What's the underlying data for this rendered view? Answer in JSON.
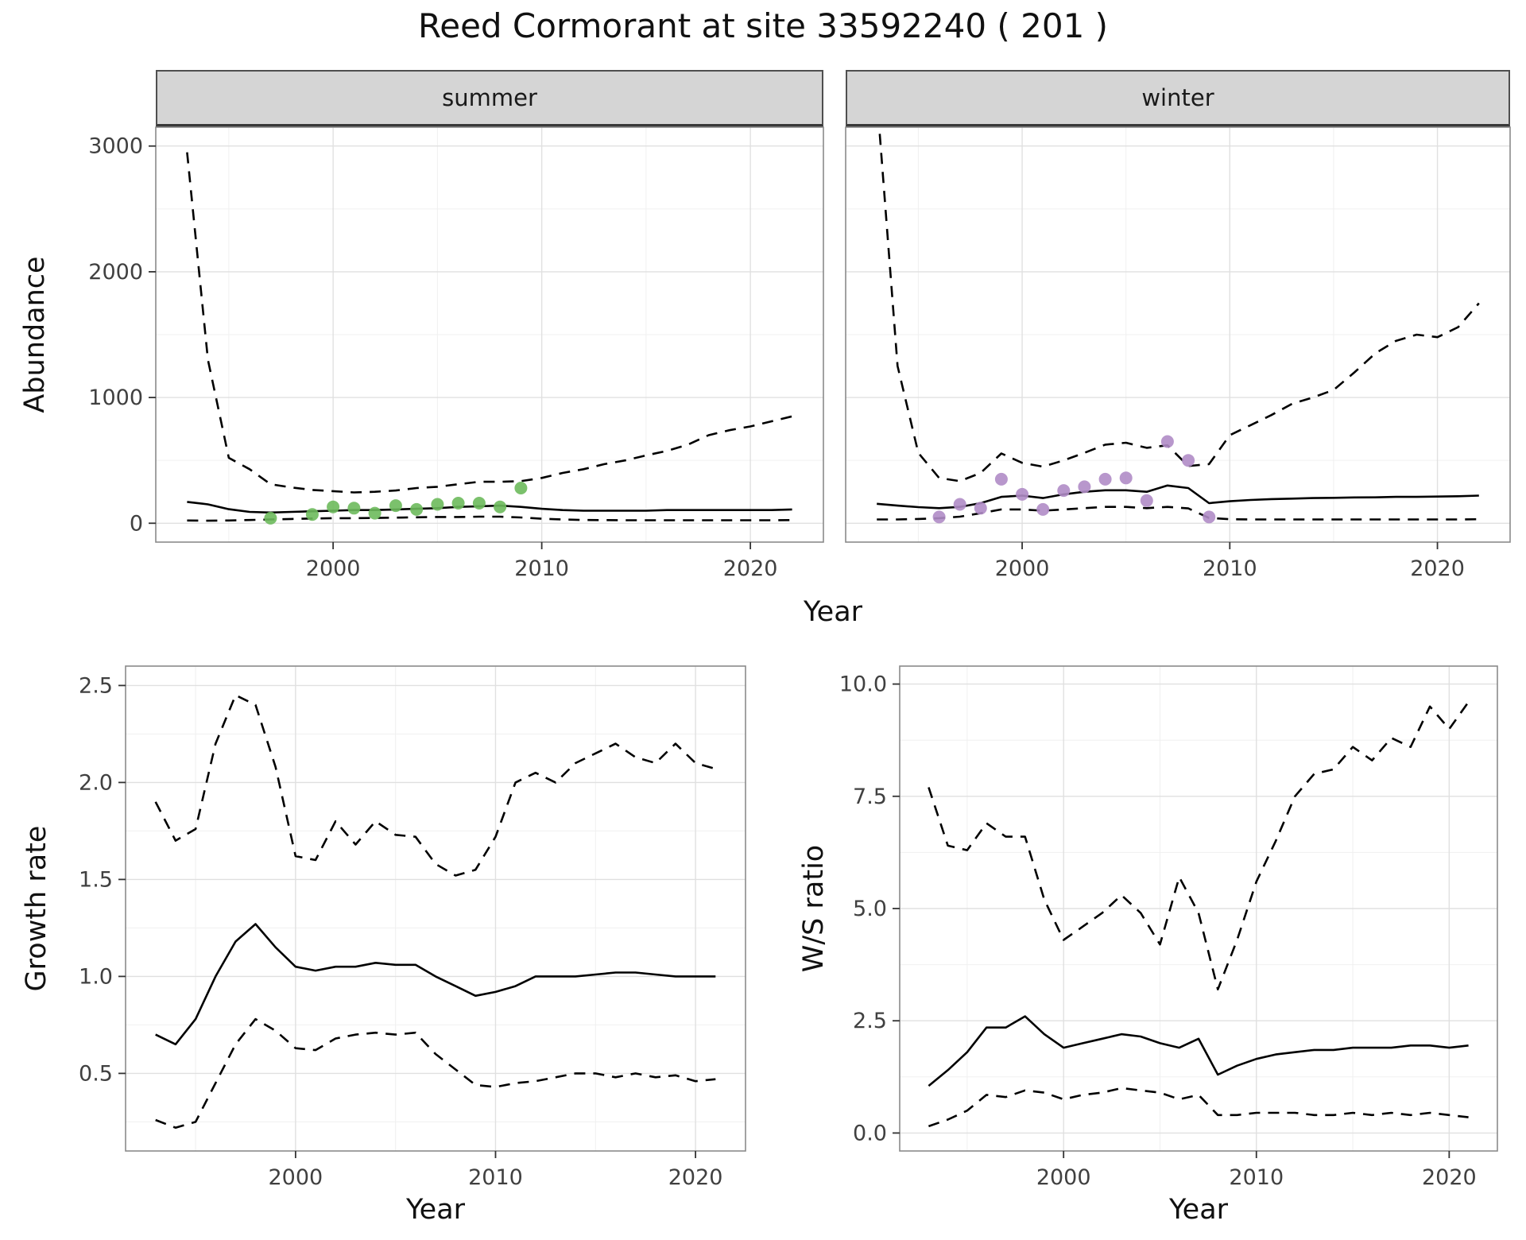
{
  "title": "Reed Cormorant at site 33592240 ( 201 )",
  "chart_data": [
    {
      "id": "abundance-summer",
      "type": "line",
      "facet_label": "summer",
      "xlabel": "Year",
      "ylabel": "Abundance",
      "xlim": [
        1991.5,
        2023.5
      ],
      "ylim": [
        -150,
        3150
      ],
      "xticks": [
        2000,
        2010,
        2020
      ],
      "xtick_labels": [
        "2000",
        "2010",
        "2020"
      ],
      "yticks": [
        0,
        1000,
        2000,
        3000
      ],
      "ytick_labels": [
        "0",
        "1000",
        "2000",
        "3000"
      ],
      "grid": true,
      "series": [
        {
          "name": "upper-95ci",
          "type": "line",
          "dash": true,
          "color": "#000000",
          "x": [
            1993,
            1994,
            1995,
            1996,
            1997,
            1998,
            1999,
            2000,
            2001,
            2002,
            2003,
            2004,
            2005,
            2006,
            2007,
            2008,
            2009,
            2010,
            2011,
            2012,
            2013,
            2014,
            2015,
            2016,
            2017,
            2018,
            2019,
            2020,
            2021,
            2022
          ],
          "y": [
            2950,
            1300,
            520,
            430,
            310,
            285,
            265,
            255,
            245,
            250,
            260,
            280,
            290,
            310,
            330,
            330,
            335,
            360,
            400,
            430,
            470,
            500,
            540,
            575,
            625,
            700,
            740,
            770,
            810,
            850
          ]
        },
        {
          "name": "median",
          "type": "line",
          "dash": false,
          "color": "#000000",
          "x": [
            1993,
            1994,
            1995,
            1996,
            1997,
            1998,
            1999,
            2000,
            2001,
            2002,
            2003,
            2004,
            2005,
            2006,
            2007,
            2008,
            2009,
            2010,
            2011,
            2012,
            2013,
            2014,
            2015,
            2016,
            2017,
            2018,
            2019,
            2020,
            2021,
            2022
          ],
          "y": [
            170,
            150,
            112,
            90,
            85,
            90,
            95,
            100,
            105,
            105,
            110,
            115,
            120,
            130,
            135,
            140,
            130,
            115,
            105,
            100,
            100,
            100,
            100,
            105,
            105,
            105,
            105,
            105,
            105,
            110
          ]
        },
        {
          "name": "lower-95ci",
          "type": "line",
          "dash": true,
          "color": "#000000",
          "x": [
            1993,
            1994,
            1995,
            1996,
            1997,
            1998,
            1999,
            2000,
            2001,
            2002,
            2003,
            2004,
            2005,
            2006,
            2007,
            2008,
            2009,
            2010,
            2011,
            2012,
            2013,
            2014,
            2015,
            2016,
            2017,
            2018,
            2019,
            2020,
            2021,
            2022
          ],
          "y": [
            22,
            20,
            22,
            26,
            30,
            34,
            38,
            40,
            40,
            42,
            45,
            47,
            50,
            50,
            52,
            52,
            46,
            36,
            30,
            26,
            25,
            24,
            24,
            24,
            24,
            24,
            24,
            24,
            24,
            25
          ]
        },
        {
          "name": "observed-counts",
          "type": "scatter",
          "color": "#6DBA5C",
          "x": [
            1997,
            1999,
            2000,
            2001,
            2002,
            2003,
            2004,
            2005,
            2006,
            2007,
            2008,
            2009
          ],
          "y": [
            40,
            70,
            130,
            120,
            80,
            140,
            110,
            150,
            160,
            160,
            130,
            280
          ]
        }
      ]
    },
    {
      "id": "abundance-winter",
      "type": "line",
      "facet_label": "winter",
      "xlabel": "Year",
      "ylabel": "Abundance",
      "xlim": [
        1991.5,
        2023.5
      ],
      "ylim": [
        -150,
        3150
      ],
      "xticks": [
        2000,
        2010,
        2020
      ],
      "xtick_labels": [
        "2000",
        "2010",
        "2020"
      ],
      "yticks": [
        0,
        1000,
        2000,
        3000
      ],
      "ytick_labels": [
        "0",
        "1000",
        "2000",
        "3000"
      ],
      "grid": true,
      "series": [
        {
          "name": "upper-95ci",
          "type": "line",
          "dash": true,
          "color": "#000000",
          "x": [
            1993,
            1994,
            1995,
            1996,
            1997,
            1998,
            1999,
            2000,
            2001,
            2002,
            2003,
            2004,
            2005,
            2006,
            2007,
            2008,
            2009,
            2010,
            2011,
            2012,
            2013,
            2014,
            2015,
            2016,
            2017,
            2018,
            2019,
            2020,
            2021,
            2022
          ],
          "y": [
            3400,
            1250,
            560,
            360,
            335,
            400,
            555,
            480,
            450,
            500,
            560,
            625,
            640,
            600,
            620,
            455,
            470,
            700,
            780,
            860,
            950,
            1000,
            1060,
            1200,
            1350,
            1450,
            1500,
            1480,
            1560,
            1750
          ]
        },
        {
          "name": "median",
          "type": "line",
          "dash": false,
          "color": "#000000",
          "x": [
            1993,
            1994,
            1995,
            1996,
            1997,
            1998,
            1999,
            2000,
            2001,
            2002,
            2003,
            2004,
            2005,
            2006,
            2007,
            2008,
            2009,
            2010,
            2011,
            2012,
            2013,
            2014,
            2015,
            2016,
            2017,
            2018,
            2019,
            2020,
            2021,
            2022
          ],
          "y": [
            155,
            140,
            128,
            120,
            130,
            160,
            210,
            220,
            200,
            230,
            250,
            262,
            262,
            250,
            300,
            280,
            160,
            175,
            185,
            192,
            196,
            200,
            202,
            205,
            206,
            210,
            210,
            212,
            215,
            220
          ]
        },
        {
          "name": "lower-95ci",
          "type": "line",
          "dash": true,
          "color": "#000000",
          "x": [
            1993,
            1994,
            1995,
            1996,
            1997,
            1998,
            1999,
            2000,
            2001,
            2002,
            2003,
            2004,
            2005,
            2006,
            2007,
            2008,
            2009,
            2010,
            2011,
            2012,
            2013,
            2014,
            2015,
            2016,
            2017,
            2018,
            2019,
            2020,
            2021,
            2022
          ],
          "y": [
            30,
            30,
            34,
            40,
            52,
            80,
            110,
            110,
            100,
            110,
            120,
            130,
            130,
            120,
            130,
            118,
            42,
            32,
            30,
            30,
            30,
            30,
            30,
            30,
            30,
            30,
            30,
            30,
            30,
            32
          ]
        },
        {
          "name": "observed-counts",
          "type": "scatter",
          "color": "#B08CC6",
          "x": [
            1996,
            1997,
            1998,
            1999,
            2000,
            2001,
            2002,
            2003,
            2004,
            2005,
            2006,
            2007,
            2008,
            2009
          ],
          "y": [
            50,
            150,
            120,
            350,
            230,
            110,
            260,
            290,
            350,
            360,
            180,
            650,
            500,
            50
          ]
        }
      ]
    },
    {
      "id": "growth-rate",
      "type": "line",
      "facet_label": "",
      "xlabel": "Year",
      "ylabel": "Growth rate",
      "xlim": [
        1991.5,
        2022.5
      ],
      "ylim": [
        0.1,
        2.6
      ],
      "xticks": [
        2000,
        2010,
        2020
      ],
      "xtick_labels": [
        "2000",
        "2010",
        "2020"
      ],
      "yticks": [
        0.5,
        1.0,
        1.5,
        2.0,
        2.5
      ],
      "ytick_labels": [
        "0.5",
        "1.0",
        "1.5",
        "2.0",
        "2.5"
      ],
      "grid": true,
      "series": [
        {
          "name": "upper-95ci",
          "type": "line",
          "dash": true,
          "color": "#000000",
          "x": [
            1993,
            1994,
            1995,
            1996,
            1997,
            1998,
            1999,
            2000,
            2001,
            2002,
            2003,
            2004,
            2005,
            2006,
            2007,
            2008,
            2009,
            2010,
            2011,
            2012,
            2013,
            2014,
            2015,
            2016,
            2017,
            2018,
            2019,
            2020,
            2021
          ],
          "y": [
            1.9,
            1.7,
            1.76,
            2.2,
            2.45,
            2.4,
            2.08,
            1.62,
            1.6,
            1.8,
            1.68,
            1.8,
            1.73,
            1.72,
            1.58,
            1.52,
            1.55,
            1.72,
            2.0,
            2.05,
            2.0,
            2.1,
            2.15,
            2.2,
            2.13,
            2.1,
            2.2,
            2.1,
            2.07
          ]
        },
        {
          "name": "median",
          "type": "line",
          "dash": false,
          "color": "#000000",
          "x": [
            1993,
            1994,
            1995,
            1996,
            1997,
            1998,
            1999,
            2000,
            2001,
            2002,
            2003,
            2004,
            2005,
            2006,
            2007,
            2008,
            2009,
            2010,
            2011,
            2012,
            2013,
            2014,
            2015,
            2016,
            2017,
            2018,
            2019,
            2020,
            2021
          ],
          "y": [
            0.7,
            0.65,
            0.78,
            1.0,
            1.18,
            1.27,
            1.15,
            1.05,
            1.03,
            1.05,
            1.05,
            1.07,
            1.06,
            1.06,
            1.0,
            0.95,
            0.9,
            0.92,
            0.95,
            1.0,
            1.0,
            1.0,
            1.01,
            1.02,
            1.02,
            1.01,
            1.0,
            1.0,
            1.0
          ]
        },
        {
          "name": "lower-95ci",
          "type": "line",
          "dash": true,
          "color": "#000000",
          "x": [
            1993,
            1994,
            1995,
            1996,
            1997,
            1998,
            1999,
            2000,
            2001,
            2002,
            2003,
            2004,
            2005,
            2006,
            2007,
            2008,
            2009,
            2010,
            2011,
            2012,
            2013,
            2014,
            2015,
            2016,
            2017,
            2018,
            2019,
            2020,
            2021
          ],
          "y": [
            0.26,
            0.22,
            0.25,
            0.45,
            0.65,
            0.78,
            0.72,
            0.63,
            0.62,
            0.68,
            0.7,
            0.71,
            0.7,
            0.71,
            0.6,
            0.52,
            0.44,
            0.43,
            0.45,
            0.46,
            0.48,
            0.5,
            0.5,
            0.48,
            0.5,
            0.48,
            0.49,
            0.46,
            0.47
          ]
        }
      ]
    },
    {
      "id": "ws-ratio",
      "type": "line",
      "facet_label": "",
      "xlabel": "Year",
      "ylabel": "W/S ratio",
      "xlim": [
        1991.5,
        2022.5
      ],
      "ylim": [
        -0.4,
        10.4
      ],
      "xticks": [
        2000,
        2010,
        2020
      ],
      "xtick_labels": [
        "2000",
        "2010",
        "2020"
      ],
      "yticks": [
        0,
        2.5,
        5.0,
        7.5,
        10.0
      ],
      "ytick_labels": [
        "0.0",
        "2.5",
        "5.0",
        "7.5",
        "10.0"
      ],
      "grid": true,
      "series": [
        {
          "name": "upper-95ci",
          "type": "line",
          "dash": true,
          "color": "#000000",
          "x": [
            1993,
            1994,
            1995,
            1996,
            1997,
            1998,
            1999,
            2000,
            2001,
            2002,
            2003,
            2004,
            2005,
            2006,
            2007,
            2008,
            2009,
            2010,
            2011,
            2012,
            2013,
            2014,
            2015,
            2016,
            2017,
            2018,
            2019,
            2020,
            2021
          ],
          "y": [
            7.7,
            6.4,
            6.3,
            6.9,
            6.6,
            6.6,
            5.2,
            4.3,
            4.6,
            4.9,
            5.3,
            4.9,
            4.2,
            5.7,
            4.9,
            3.2,
            4.3,
            5.6,
            6.5,
            7.5,
            8.0,
            8.1,
            8.6,
            8.3,
            8.8,
            8.6,
            9.5,
            9.0,
            9.6
          ]
        },
        {
          "name": "median",
          "type": "line",
          "dash": false,
          "color": "#000000",
          "x": [
            1993,
            1994,
            1995,
            1996,
            1997,
            1998,
            1999,
            2000,
            2001,
            2002,
            2003,
            2004,
            2005,
            2006,
            2007,
            2008,
            2009,
            2010,
            2011,
            2012,
            2013,
            2014,
            2015,
            2016,
            2017,
            2018,
            2019,
            2020,
            2021
          ],
          "y": [
            1.05,
            1.4,
            1.8,
            2.35,
            2.35,
            2.6,
            2.2,
            1.9,
            2.0,
            2.1,
            2.2,
            2.15,
            2.0,
            1.9,
            2.1,
            1.3,
            1.5,
            1.65,
            1.75,
            1.8,
            1.85,
            1.85,
            1.9,
            1.9,
            1.9,
            1.95,
            1.95,
            1.9,
            1.95
          ]
        },
        {
          "name": "lower-95ci",
          "type": "line",
          "dash": true,
          "color": "#000000",
          "x": [
            1993,
            1994,
            1995,
            1996,
            1997,
            1998,
            1999,
            2000,
            2001,
            2002,
            2003,
            2004,
            2005,
            2006,
            2007,
            2008,
            2009,
            2010,
            2011,
            2012,
            2013,
            2014,
            2015,
            2016,
            2017,
            2018,
            2019,
            2020,
            2021
          ],
          "y": [
            0.15,
            0.3,
            0.5,
            0.85,
            0.8,
            0.95,
            0.9,
            0.75,
            0.85,
            0.9,
            1.0,
            0.95,
            0.9,
            0.75,
            0.85,
            0.4,
            0.4,
            0.45,
            0.45,
            0.45,
            0.4,
            0.4,
            0.45,
            0.4,
            0.45,
            0.4,
            0.45,
            0.4,
            0.35
          ]
        }
      ]
    }
  ]
}
